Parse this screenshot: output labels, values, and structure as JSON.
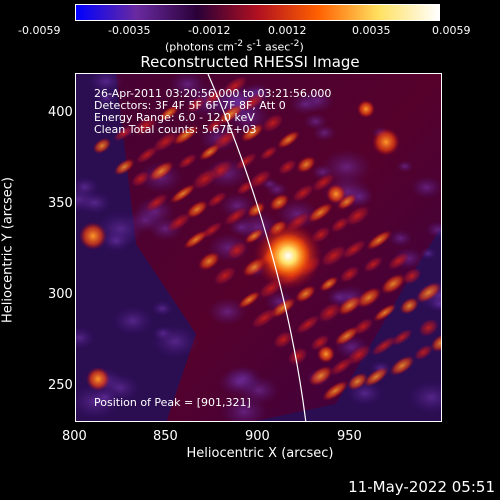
{
  "colorbar": {
    "ticks": [
      "-0.0059",
      "-0.0035",
      "-0.0012",
      "0.0012",
      "0.0035",
      "0.0059"
    ],
    "unit_pre": "(photons cm",
    "unit_sup1": "-2",
    "unit_mid1": " s",
    "unit_sup2": "-1",
    "unit_mid2": " asec",
    "unit_sup3": "-2",
    "unit_post": ")",
    "colors": [
      "#0000ff",
      "#6a2aa0",
      "#2a0038",
      "#b01020",
      "#ff6000",
      "#ffe060",
      "#ffffff"
    ]
  },
  "plot": {
    "title": "Reconstructed RHESSI Image",
    "info_lines": [
      "26-Apr-2011 03:20:56.000 to 03:21:56.000",
      "Detectors: 3F 4F 5F 6F 7F 8F, Att 0",
      "Energy Range: 6.0 - 12.0 keV",
      "Clean     Total counts: 5.67E+03"
    ],
    "peak_label": "Position of Peak = [901,321]",
    "xlabel": "Heliocentric X (arcsec)",
    "ylabel": "Heliocentric Y (arcsec)",
    "xticks": [
      "800",
      "850",
      "900",
      "950"
    ],
    "yticks": [
      "400",
      "350",
      "300",
      "250"
    ],
    "peak": [
      901,
      321
    ]
  },
  "timestamp": "11-May-2022 05:51"
}
